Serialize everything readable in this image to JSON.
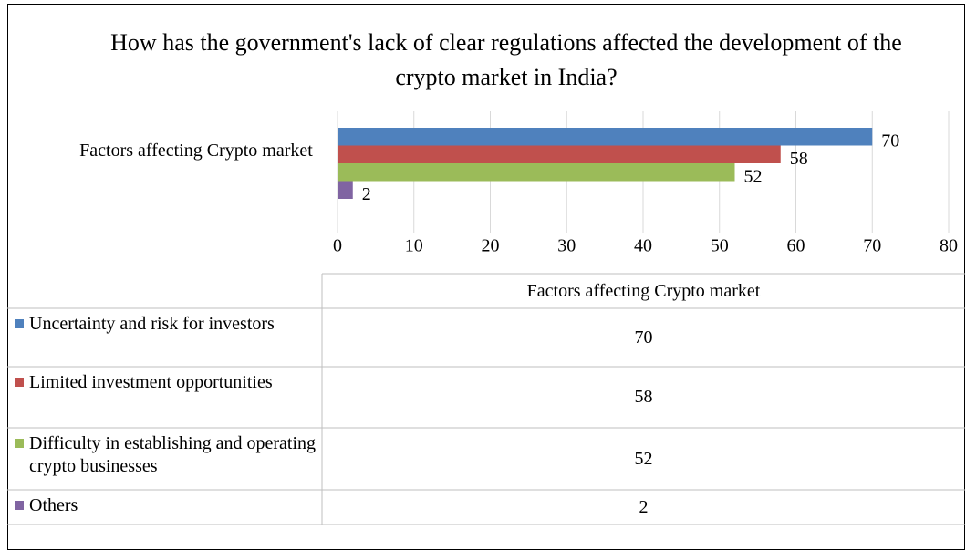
{
  "chart_data": {
    "type": "bar",
    "orientation": "horizontal",
    "title": "How has the government's lack of clear regulations affected the development of the crypto market in India?",
    "categories": [
      "Factors affecting Crypto market"
    ],
    "series": [
      {
        "name": "Uncertainty and risk for investors",
        "color": "#4f81bd",
        "values": [
          70
        ]
      },
      {
        "name": "Limited investment opportunities",
        "color": "#c0504d",
        "values": [
          58
        ]
      },
      {
        "name": "Difficulty in establishing and operating crypto businesses",
        "color": "#9bbb59",
        "values": [
          52
        ]
      },
      {
        "name": "Others",
        "color": "#8064a2",
        "values": [
          2
        ]
      }
    ],
    "xlim": [
      0,
      80
    ],
    "xticks": [
      0,
      10,
      20,
      30,
      40,
      50,
      60,
      70,
      80
    ],
    "grid": true,
    "data_table": true
  }
}
